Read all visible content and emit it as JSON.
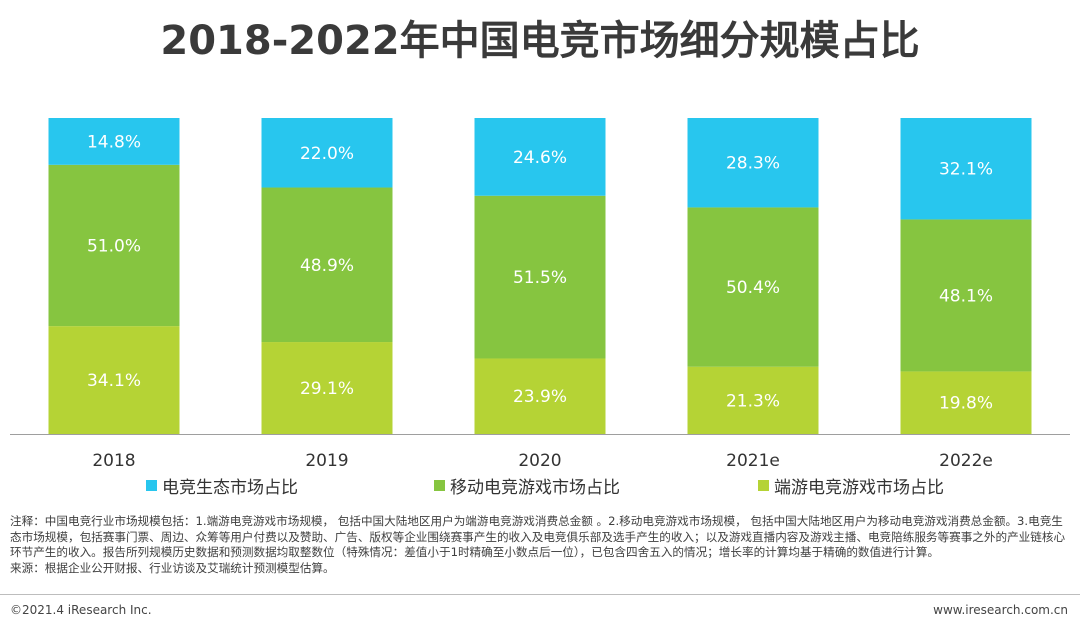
{
  "title": "2018-2022年中国电竞市场细分规模占比",
  "chart_data": {
    "type": "bar",
    "stacked": true,
    "normalized_percent": true,
    "title": "2018-2022年中国电竞市场细分规模占比",
    "categories": [
      "2018",
      "2019",
      "2020",
      "2021e",
      "2022e"
    ],
    "series": [
      {
        "name": "端游电竞游戏市场占比",
        "color": "#b5d335",
        "values": [
          34.1,
          29.1,
          23.9,
          21.3,
          19.8
        ]
      },
      {
        "name": "移动电竞游戏市场占比",
        "color": "#86c540",
        "values": [
          51.0,
          48.9,
          51.5,
          50.4,
          48.1
        ]
      },
      {
        "name": "电竞生态市场占比",
        "color": "#28c6ee",
        "values": [
          14.8,
          22.0,
          24.6,
          28.3,
          32.1
        ]
      }
    ],
    "value_suffix": "%",
    "ylim": [
      0,
      100
    ],
    "xlabel": "",
    "ylabel": ""
  },
  "legend": [
    {
      "label": "电竞生态市场占比",
      "color": "#28c6ee"
    },
    {
      "label": "移动电竞游戏市场占比",
      "color": "#86c540"
    },
    {
      "label": "端游电竞游戏市场占比",
      "color": "#b5d335"
    }
  ],
  "notes": {
    "line1": "注释：中国电竞行业市场规模包括：1.端游电竞游戏市场规模， 包括中国大陆地区用户为端游电竞游戏消费总金额 。2.移动电竞游戏市场规模， 包括中国大陆地区用户为移动电竞游戏消费总金额。3.电竞生态市场规模，包括赛事门票、周边、众筹等用户付费以及赞助、广告、版权等企业围绕赛事产生的收入及电竞俱乐部及选手产生的收入；以及游戏直播内容及游戏主播、电竞陪练服务等赛事之外的产业链核心环节产生的收入。报告所列规模历史数据和预测数据均取整数位（特殊情况：差值小于1时精确至小数点后一位），已包含四舍五入的情况；增长率的计算均基于精确的数值进行计算。",
    "source": "来源：根据企业公开财报、行业访谈及艾瑞统计预测模型估算。"
  },
  "footer": {
    "copyright": "©2021.4 iResearch Inc.",
    "website": "www.iresearch.com.cn"
  }
}
